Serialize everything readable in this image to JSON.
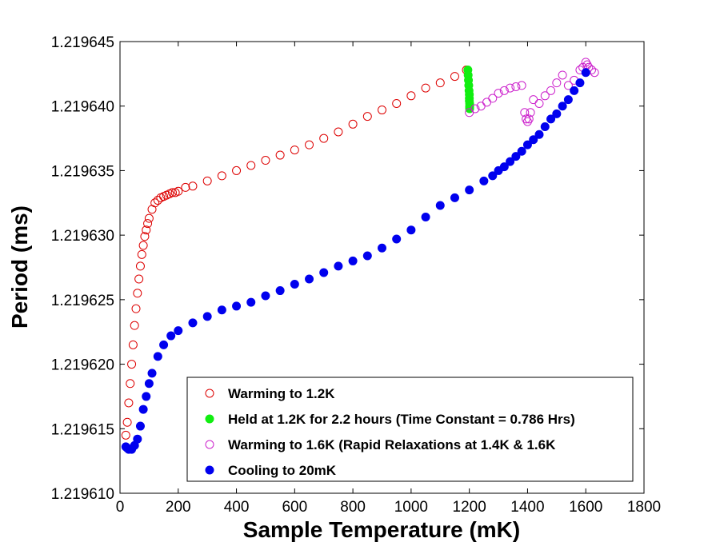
{
  "chart_data": {
    "type": "scatter",
    "title": "",
    "xlabel": "Sample Temperature (mK)",
    "ylabel": "Period (ms)",
    "xlim": [
      0,
      1800
    ],
    "ylim": [
      1.21961,
      1.219645
    ],
    "x_ticks": [
      0,
      200,
      400,
      600,
      800,
      1000,
      1200,
      1400,
      1600,
      1800
    ],
    "y_ticks": [
      1.21961,
      1.219615,
      1.21962,
      1.219625,
      1.21963,
      1.219635,
      1.21964,
      1.219645
    ],
    "x_tick_labels": [
      "0",
      "200",
      "400",
      "600",
      "800",
      "1000",
      "1200",
      "1400",
      "1600",
      "1800"
    ],
    "y_tick_labels": [
      "1.219610",
      "1.219615",
      "1.219620",
      "1.219625",
      "1.219630",
      "1.219635",
      "1.219640",
      "1.219645"
    ],
    "grid": false,
    "legend_position": "bottom-right",
    "series": [
      {
        "name": "Warming to 1.2K",
        "marker": "open-circle",
        "color": "#dd0000",
        "x": [
          20,
          25,
          30,
          35,
          40,
          45,
          50,
          55,
          60,
          65,
          70,
          75,
          80,
          85,
          90,
          95,
          100,
          110,
          120,
          130,
          140,
          150,
          160,
          170,
          180,
          190,
          200,
          225,
          250,
          300,
          350,
          400,
          450,
          500,
          550,
          600,
          650,
          700,
          750,
          800,
          850,
          900,
          950,
          1000,
          1050,
          1100,
          1150,
          1190
        ],
        "y": [
          1.2196145,
          1.2196155,
          1.219617,
          1.2196185,
          1.21962,
          1.2196215,
          1.219623,
          1.2196243,
          1.2196255,
          1.2196266,
          1.2196276,
          1.2196285,
          1.2196292,
          1.2196299,
          1.2196304,
          1.2196309,
          1.2196313,
          1.219632,
          1.2196325,
          1.2196327,
          1.2196329,
          1.219633,
          1.2196331,
          1.2196332,
          1.2196333,
          1.2196333,
          1.2196334,
          1.2196337,
          1.2196338,
          1.2196342,
          1.2196346,
          1.219635,
          1.2196354,
          1.2196358,
          1.2196362,
          1.2196366,
          1.219637,
          1.2196375,
          1.219638,
          1.2196386,
          1.2196392,
          1.2196397,
          1.2196402,
          1.2196408,
          1.2196414,
          1.2196418,
          1.2196423,
          1.2196428
        ]
      },
      {
        "name": "Held at 1.2K for 2.2 hours (Time Constant = 0.786 Hrs)",
        "marker": "filled-circle",
        "color": "#11ee11",
        "x": [
          1195,
          1196,
          1197,
          1198,
          1199,
          1200,
          1200,
          1200,
          1201,
          1201,
          1201,
          1201
        ],
        "y": [
          1.2196428,
          1.2196424,
          1.219642,
          1.2196416,
          1.2196412,
          1.2196409,
          1.2196406,
          1.2196404,
          1.2196402,
          1.21964,
          1.2196399,
          1.2196398
        ]
      },
      {
        "name": "Warming to 1.6K (Rapid Relaxations at 1.4K & 1.6K",
        "marker": "open-circle",
        "color": "#cc22cc",
        "x": [
          1200,
          1220,
          1240,
          1260,
          1280,
          1300,
          1320,
          1340,
          1360,
          1380,
          1390,
          1395,
          1400,
          1405,
          1410,
          1420,
          1440,
          1460,
          1480,
          1500,
          1520,
          1540,
          1560,
          1580,
          1590,
          1600,
          1605,
          1610,
          1620,
          1630
        ],
        "y": [
          1.2196395,
          1.2196398,
          1.21964,
          1.2196403,
          1.2196406,
          1.219641,
          1.2196412,
          1.2196414,
          1.2196415,
          1.2196416,
          1.2196395,
          1.219639,
          1.2196388,
          1.219639,
          1.2196395,
          1.2196405,
          1.2196402,
          1.2196408,
          1.2196412,
          1.2196418,
          1.2196424,
          1.2196416,
          1.219642,
          1.2196428,
          1.219643,
          1.2196434,
          1.2196432,
          1.219643,
          1.2196428,
          1.2196426
        ]
      },
      {
        "name": "Cooling to 20mK",
        "marker": "filled-circle",
        "color": "#0000ee",
        "x": [
          1600,
          1580,
          1560,
          1540,
          1520,
          1500,
          1480,
          1460,
          1440,
          1420,
          1400,
          1380,
          1360,
          1340,
          1320,
          1300,
          1280,
          1250,
          1200,
          1150,
          1100,
          1050,
          1000,
          950,
          900,
          850,
          800,
          750,
          700,
          650,
          600,
          550,
          500,
          450,
          400,
          350,
          300,
          250,
          200,
          175,
          150,
          130,
          110,
          100,
          90,
          80,
          70,
          60,
          50,
          40,
          30,
          25,
          20
        ],
        "y": [
          1.2196426,
          1.2196418,
          1.2196412,
          1.2196405,
          1.21964,
          1.2196394,
          1.219639,
          1.2196384,
          1.2196378,
          1.2196374,
          1.219637,
          1.2196365,
          1.2196361,
          1.2196357,
          1.2196353,
          1.219635,
          1.2196346,
          1.2196342,
          1.2196335,
          1.2196329,
          1.2196323,
          1.2196314,
          1.2196304,
          1.2196297,
          1.219629,
          1.2196284,
          1.219628,
          1.2196276,
          1.2196271,
          1.2196266,
          1.2196262,
          1.2196257,
          1.2196253,
          1.2196248,
          1.2196245,
          1.2196242,
          1.2196237,
          1.2196232,
          1.2196226,
          1.2196222,
          1.2196215,
          1.2196206,
          1.2196193,
          1.2196185,
          1.2196175,
          1.2196165,
          1.2196152,
          1.2196142,
          1.2196137,
          1.2196134,
          1.2196134,
          1.2196135,
          1.2196136
        ]
      }
    ]
  }
}
